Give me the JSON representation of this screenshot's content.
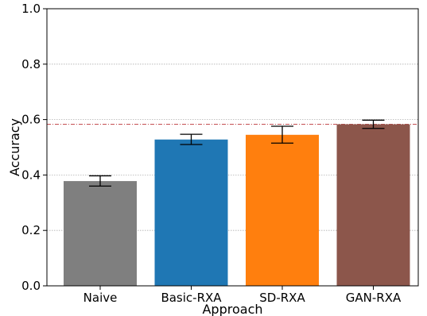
{
  "chart_data": {
    "type": "bar",
    "title": "",
    "xlabel": "Approach",
    "ylabel": "Accuracy",
    "ylim": [
      0,
      1.0
    ],
    "yticks": [
      0.0,
      0.2,
      0.4,
      0.6,
      0.8,
      1.0
    ],
    "ytick_labels": [
      "0.0",
      "0.2",
      "0.4",
      "0.6",
      "0.8",
      "1.0"
    ],
    "grid": "horizontal dotted",
    "categories": [
      "Naive",
      "Basic-RXA",
      "SD-RXA",
      "GAN-RXA"
    ],
    "values": [
      0.378,
      0.528,
      0.545,
      0.583
    ],
    "error_low": [
      0.36,
      0.51,
      0.515,
      0.568
    ],
    "error_high": [
      0.397,
      0.547,
      0.576,
      0.598
    ],
    "bar_colors": [
      "#7f7f7f",
      "#1f77b4",
      "#ff7f0e",
      "#8c564b"
    ],
    "reference_line": {
      "value": 0.583,
      "color": "#c44e52",
      "style": "dash-dot"
    }
  }
}
